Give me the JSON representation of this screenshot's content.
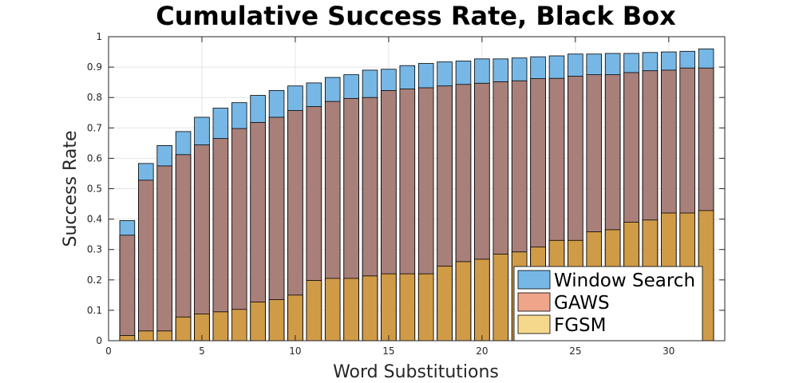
{
  "chart_data": {
    "type": "bar",
    "layout": "overlaid",
    "title": "Cumulative Success Rate, Black Box",
    "xlabel": "Word Substitutions",
    "ylabel": "Success Rate",
    "xlim": [
      0,
      33
    ],
    "ylim": [
      0,
      1
    ],
    "xticks": [
      0,
      5,
      10,
      15,
      20,
      25,
      30
    ],
    "yticks": [
      0,
      0.1,
      0.2,
      0.3,
      0.4,
      0.5,
      0.6,
      0.7,
      0.8,
      0.9,
      1
    ],
    "xtick_labels": [
      "0",
      "5",
      "10",
      "15",
      "20",
      "25",
      "30"
    ],
    "ytick_labels": [
      "0",
      "0.1",
      "0.2",
      "0.3",
      "0.4",
      "0.5",
      "0.6",
      "0.7",
      "0.8",
      "0.9",
      "1"
    ],
    "grid": true,
    "legend_position": "bottom-right",
    "x": [
      1,
      2,
      3,
      4,
      5,
      6,
      7,
      8,
      9,
      10,
      11,
      12,
      13,
      14,
      15,
      16,
      17,
      18,
      19,
      20,
      21,
      22,
      23,
      24,
      25,
      26,
      27,
      28,
      29,
      30,
      31,
      32
    ],
    "series": [
      {
        "name": "Window Search",
        "color": "#77b7e5",
        "values": [
          0.395,
          0.583,
          0.642,
          0.688,
          0.735,
          0.765,
          0.783,
          0.807,
          0.823,
          0.838,
          0.848,
          0.866,
          0.875,
          0.89,
          0.893,
          0.905,
          0.912,
          0.917,
          0.92,
          0.927,
          0.927,
          0.93,
          0.934,
          0.937,
          0.943,
          0.943,
          0.945,
          0.945,
          0.948,
          0.95,
          0.952,
          0.96
        ]
      },
      {
        "name": "GAWS",
        "color": "#a88079",
        "legend_color": "#eea58a",
        "values": [
          0.347,
          0.528,
          0.575,
          0.612,
          0.644,
          0.665,
          0.698,
          0.718,
          0.735,
          0.757,
          0.77,
          0.787,
          0.797,
          0.8,
          0.823,
          0.828,
          0.832,
          0.838,
          0.843,
          0.847,
          0.852,
          0.855,
          0.862,
          0.863,
          0.87,
          0.875,
          0.875,
          0.882,
          0.888,
          0.89,
          0.897,
          0.897
        ]
      },
      {
        "name": "FGSM",
        "color": "#d09b47",
        "legend_color": "#f5d88c",
        "values": [
          0.017,
          0.032,
          0.032,
          0.078,
          0.088,
          0.095,
          0.103,
          0.127,
          0.135,
          0.15,
          0.198,
          0.205,
          0.205,
          0.213,
          0.22,
          0.22,
          0.22,
          0.245,
          0.26,
          0.268,
          0.285,
          0.292,
          0.308,
          0.33,
          0.33,
          0.358,
          0.365,
          0.39,
          0.397,
          0.42,
          0.42,
          0.428
        ]
      }
    ]
  }
}
